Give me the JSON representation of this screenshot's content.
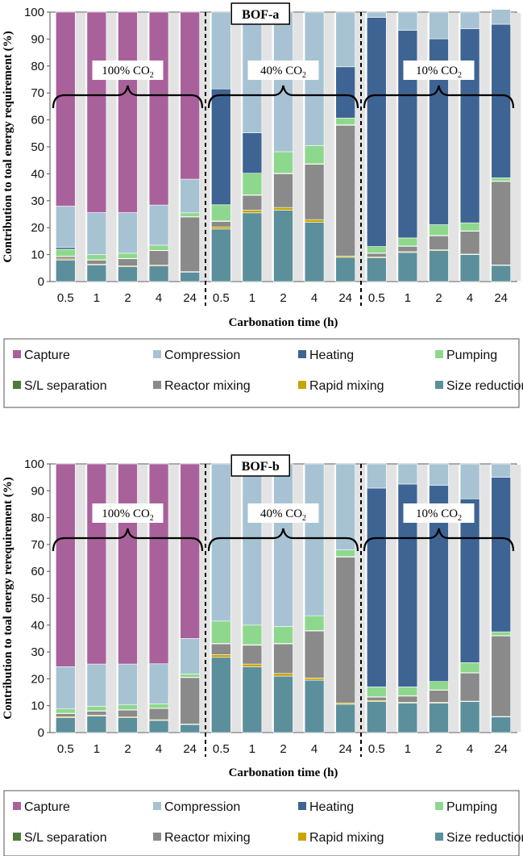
{
  "colors": {
    "Capture": "#a9619b",
    "Compression": "#a7c3d3",
    "Heating": "#3e6494",
    "Pumping": "#8ed88e",
    "S/L separation": "#4f7a3a",
    "Reactor mixing": "#8a8a8a",
    "Rapid mixing": "#c9a400",
    "Size reduction": "#5b8f9c"
  },
  "legend_labels": [
    "Capture",
    "Compression",
    "Heating",
    "Pumping",
    "S/L separation",
    "Reactor mixing",
    "Rapid mixing",
    "Size reduction"
  ],
  "chart_data": [
    {
      "type": "bar",
      "stacked": true,
      "title": "BOF-a",
      "xlabel": "Carbonation time (h)",
      "ylabel": "Contribution to toal energy requirement (%)",
      "ylim": [
        0,
        100
      ],
      "yticks": [
        0,
        10,
        20,
        30,
        40,
        50,
        60,
        70,
        80,
        90,
        100
      ],
      "groups": [
        {
          "label": "100% CO",
          "sub": "2"
        },
        {
          "label": "40% CO",
          "sub": "2"
        },
        {
          "label": "10% CO",
          "sub": "2"
        }
      ],
      "categories": [
        "0.5",
        "1",
        "2",
        "4",
        "24",
        "0.5",
        "1",
        "2",
        "4",
        "24",
        "0.5",
        "1",
        "2",
        "4",
        "24"
      ],
      "series": [
        {
          "name": "Size reduction",
          "values": [
            8,
            6.2,
            5.5,
            5.8,
            3.5,
            19.5,
            25.5,
            26.5,
            22,
            9,
            8.8,
            10.8,
            11.5,
            10,
            6
          ]
        },
        {
          "name": "Rapid mixing",
          "values": [
            0.4,
            0.3,
            0.3,
            0.3,
            0.2,
            0.8,
            1,
            1,
            1,
            0.5,
            0.3,
            0.3,
            0.3,
            0.2,
            0.2
          ]
        },
        {
          "name": "Reactor mixing",
          "values": [
            0.9,
            1.5,
            2.7,
            5.4,
            20.3,
            2,
            5.5,
            12.5,
            20.5,
            48.5,
            1.4,
            2,
            5.2,
            8.5,
            31
          ]
        },
        {
          "name": "S/L separation",
          "values": [
            0.1,
            0.1,
            0.1,
            0.1,
            0.1,
            0.2,
            0.2,
            0.2,
            0.2,
            0.2,
            0.1,
            0.1,
            0.1,
            0.1,
            0.1
          ]
        },
        {
          "name": "Pumping",
          "values": [
            2.6,
            1.9,
            1.9,
            1.9,
            1.4,
            6,
            8,
            8,
            6.8,
            2.5,
            2.4,
            3,
            4,
            3,
            1.2
          ]
        },
        {
          "name": "Heating",
          "values": [
            0.7,
            0,
            0,
            0,
            0,
            43,
            15,
            0,
            0,
            19,
            85,
            77,
            69,
            72,
            57
          ]
        },
        {
          "name": "Compression",
          "values": [
            15.3,
            15.6,
            15.1,
            14.9,
            12.5,
            28.5,
            44.8,
            51.8,
            49.5,
            20.3,
            2,
            6.8,
            9.9,
            6.2,
            5.5
          ]
        },
        {
          "name": "Capture",
          "values": [
            72,
            74.4,
            74.4,
            71.6,
            62,
            0,
            0,
            0,
            0,
            0,
            0,
            0,
            0,
            0,
            0
          ]
        }
      ]
    },
    {
      "type": "bar",
      "stacked": true,
      "title": "BOF-b",
      "xlabel": "Carbonation time (h)",
      "ylabel": "Contribution to toal energy rerequirement (%)",
      "ylim": [
        0,
        100
      ],
      "yticks": [
        0,
        10,
        20,
        30,
        40,
        50,
        60,
        70,
        80,
        90,
        100
      ],
      "groups": [
        {
          "label": "100% CO",
          "sub": "2"
        },
        {
          "label": "40% CO",
          "sub": "2"
        },
        {
          "label": "10% CO",
          "sub": "2"
        }
      ],
      "categories": [
        "0.5",
        "1",
        "2",
        "4",
        "24",
        "0.5",
        "1",
        "2",
        "4",
        "24",
        "0.5",
        "1",
        "2",
        "4",
        "24"
      ],
      "series": [
        {
          "name": "Size reduction",
          "values": [
            5.5,
            6.2,
            5.5,
            4.5,
            3,
            28,
            24.5,
            21,
            19.5,
            10.5,
            11.5,
            11,
            11,
            11.5,
            5.8
          ]
        },
        {
          "name": "Rapid mixing",
          "values": [
            0.4,
            0.3,
            0.3,
            0.3,
            0.2,
            1,
            1,
            1,
            0.8,
            0.5,
            0.4,
            0.3,
            0.3,
            0.2,
            0.2
          ]
        },
        {
          "name": "Reactor mixing",
          "values": [
            1.2,
            1.5,
            2.6,
            4.2,
            17.3,
            4,
            7,
            11,
            17.5,
            54.3,
            1.3,
            2.3,
            4.5,
            10.5,
            30
          ]
        },
        {
          "name": "S/L separation",
          "values": [
            0.1,
            0.1,
            0.1,
            0.1,
            0.1,
            0.2,
            0.2,
            0.2,
            0.2,
            0.2,
            0.1,
            0.1,
            0.1,
            0.1,
            0.1
          ]
        },
        {
          "name": "Pumping",
          "values": [
            1.6,
            1.7,
            1.8,
            1.6,
            1.2,
            8.3,
            7.3,
            6.3,
            5.5,
            2.5,
            3.7,
            3.3,
            3.1,
            3.7,
            1.4
          ]
        },
        {
          "name": "Heating",
          "values": [
            0,
            0,
            0,
            0,
            0,
            0,
            0,
            0,
            0,
            0,
            74,
            75.5,
            73,
            61,
            57.5
          ]
        },
        {
          "name": "Compression",
          "values": [
            15.7,
            15.7,
            15.2,
            14.9,
            13.2,
            58.5,
            60,
            60.5,
            56.5,
            32,
            9,
            7.5,
            8,
            13,
            5
          ]
        },
        {
          "name": "Capture",
          "values": [
            75.5,
            74.5,
            74.5,
            74.4,
            65,
            0,
            0,
            0,
            0,
            0,
            0,
            0,
            0,
            0,
            0
          ]
        }
      ]
    }
  ]
}
